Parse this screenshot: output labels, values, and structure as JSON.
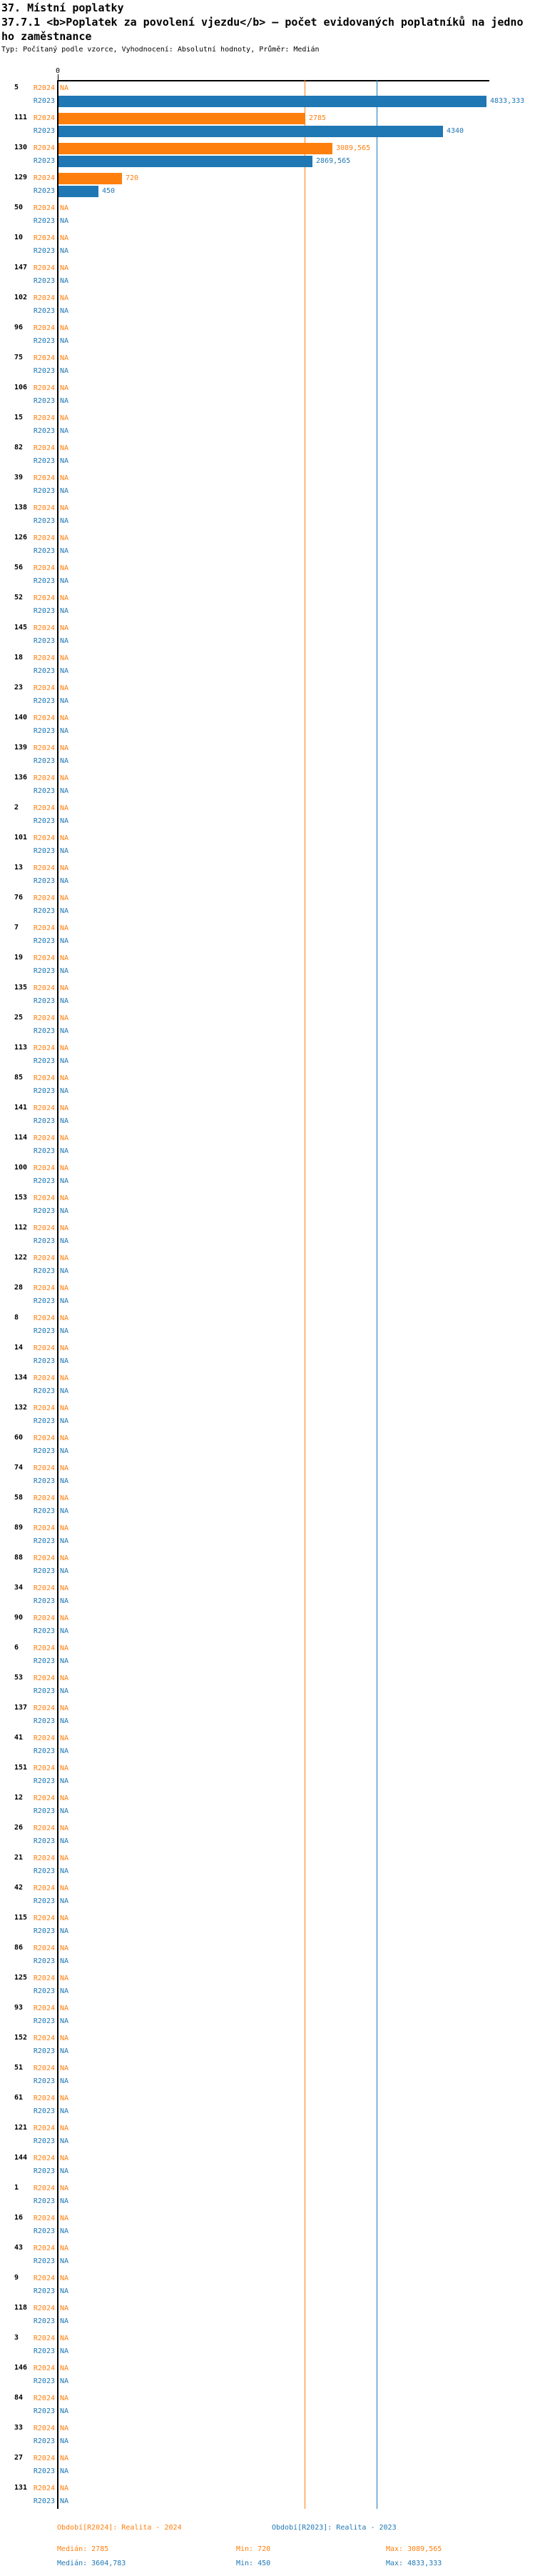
{
  "header": {
    "title": "37. Místní poplatky",
    "subtitle_line1": "37.7.1 <b>Poplatek za povolení vjezdu</b> — počet evidovaných poplatníků na jedno",
    "subtitle_line2": "ho zaměstnance",
    "meta": "Typ: Počítaný podle vzorce, Vyhodnocení: Absolutní hodnoty, Průměr: Medián"
  },
  "chart_data": {
    "type": "bar",
    "orientation": "horizontal",
    "title": "37.7.1 Poplatek za povolení vjezdu — počet evidovaných poplatníků na jednoho zaměstnance",
    "axis": {
      "tick0": "0",
      "xmin": 0,
      "xmax": 4833.333,
      "grid": "median-lines-only"
    },
    "na_label": "NA",
    "series_names": [
      "R2024",
      "R2023"
    ],
    "colors": {
      "r2024": "#ff7f0e",
      "r2023": "#1f77b4",
      "axis": "#000000"
    },
    "median_lines": {
      "r2024": 2785,
      "r2023": 3604.783
    },
    "rows": [
      {
        "id": "5",
        "r2024": null,
        "r2024_label": null,
        "r2023": 4833.333,
        "r2023_label": "4833,333"
      },
      {
        "id": "111",
        "r2024": 2785,
        "r2024_label": "2785",
        "r2023": 4340,
        "r2023_label": "4340"
      },
      {
        "id": "130",
        "r2024": 3089.565,
        "r2024_label": "3089,565",
        "r2023": 2869.565,
        "r2023_label": "2869,565"
      },
      {
        "id": "129",
        "r2024": 720,
        "r2024_label": "720",
        "r2023": 450,
        "r2023_label": "450"
      },
      {
        "id": "50",
        "r2024": null,
        "r2024_label": null,
        "r2023": null,
        "r2023_label": null
      },
      {
        "id": "10",
        "r2024": null,
        "r2024_label": null,
        "r2023": null,
        "r2023_label": null
      },
      {
        "id": "147",
        "r2024": null,
        "r2024_label": null,
        "r2023": null,
        "r2023_label": null
      },
      {
        "id": "102",
        "r2024": null,
        "r2024_label": null,
        "r2023": null,
        "r2023_label": null
      },
      {
        "id": "96",
        "r2024": null,
        "r2024_label": null,
        "r2023": null,
        "r2023_label": null
      },
      {
        "id": "75",
        "r2024": null,
        "r2024_label": null,
        "r2023": null,
        "r2023_label": null
      },
      {
        "id": "106",
        "r2024": null,
        "r2024_label": null,
        "r2023": null,
        "r2023_label": null
      },
      {
        "id": "15",
        "r2024": null,
        "r2024_label": null,
        "r2023": null,
        "r2023_label": null
      },
      {
        "id": "82",
        "r2024": null,
        "r2024_label": null,
        "r2023": null,
        "r2023_label": null
      },
      {
        "id": "39",
        "r2024": null,
        "r2024_label": null,
        "r2023": null,
        "r2023_label": null
      },
      {
        "id": "138",
        "r2024": null,
        "r2024_label": null,
        "r2023": null,
        "r2023_label": null
      },
      {
        "id": "126",
        "r2024": null,
        "r2024_label": null,
        "r2023": null,
        "r2023_label": null
      },
      {
        "id": "56",
        "r2024": null,
        "r2024_label": null,
        "r2023": null,
        "r2023_label": null
      },
      {
        "id": "52",
        "r2024": null,
        "r2024_label": null,
        "r2023": null,
        "r2023_label": null
      },
      {
        "id": "145",
        "r2024": null,
        "r2024_label": null,
        "r2023": null,
        "r2023_label": null
      },
      {
        "id": "18",
        "r2024": null,
        "r2024_label": null,
        "r2023": null,
        "r2023_label": null
      },
      {
        "id": "23",
        "r2024": null,
        "r2024_label": null,
        "r2023": null,
        "r2023_label": null
      },
      {
        "id": "140",
        "r2024": null,
        "r2024_label": null,
        "r2023": null,
        "r2023_label": null
      },
      {
        "id": "139",
        "r2024": null,
        "r2024_label": null,
        "r2023": null,
        "r2023_label": null
      },
      {
        "id": "136",
        "r2024": null,
        "r2024_label": null,
        "r2023": null,
        "r2023_label": null
      },
      {
        "id": "2",
        "r2024": null,
        "r2024_label": null,
        "r2023": null,
        "r2023_label": null
      },
      {
        "id": "101",
        "r2024": null,
        "r2024_label": null,
        "r2023": null,
        "r2023_label": null
      },
      {
        "id": "13",
        "r2024": null,
        "r2024_label": null,
        "r2023": null,
        "r2023_label": null
      },
      {
        "id": "76",
        "r2024": null,
        "r2024_label": null,
        "r2023": null,
        "r2023_label": null
      },
      {
        "id": "7",
        "r2024": null,
        "r2024_label": null,
        "r2023": null,
        "r2023_label": null
      },
      {
        "id": "19",
        "r2024": null,
        "r2024_label": null,
        "r2023": null,
        "r2023_label": null
      },
      {
        "id": "135",
        "r2024": null,
        "r2024_label": null,
        "r2023": null,
        "r2023_label": null
      },
      {
        "id": "25",
        "r2024": null,
        "r2024_label": null,
        "r2023": null,
        "r2023_label": null
      },
      {
        "id": "113",
        "r2024": null,
        "r2024_label": null,
        "r2023": null,
        "r2023_label": null
      },
      {
        "id": "85",
        "r2024": null,
        "r2024_label": null,
        "r2023": null,
        "r2023_label": null
      },
      {
        "id": "141",
        "r2024": null,
        "r2024_label": null,
        "r2023": null,
        "r2023_label": null
      },
      {
        "id": "114",
        "r2024": null,
        "r2024_label": null,
        "r2023": null,
        "r2023_label": null
      },
      {
        "id": "100",
        "r2024": null,
        "r2024_label": null,
        "r2023": null,
        "r2023_label": null
      },
      {
        "id": "153",
        "r2024": null,
        "r2024_label": null,
        "r2023": null,
        "r2023_label": null
      },
      {
        "id": "112",
        "r2024": null,
        "r2024_label": null,
        "r2023": null,
        "r2023_label": null
      },
      {
        "id": "122",
        "r2024": null,
        "r2024_label": null,
        "r2023": null,
        "r2023_label": null
      },
      {
        "id": "28",
        "r2024": null,
        "r2024_label": null,
        "r2023": null,
        "r2023_label": null
      },
      {
        "id": "8",
        "r2024": null,
        "r2024_label": null,
        "r2023": null,
        "r2023_label": null
      },
      {
        "id": "14",
        "r2024": null,
        "r2024_label": null,
        "r2023": null,
        "r2023_label": null
      },
      {
        "id": "134",
        "r2024": null,
        "r2024_label": null,
        "r2023": null,
        "r2023_label": null
      },
      {
        "id": "132",
        "r2024": null,
        "r2024_label": null,
        "r2023": null,
        "r2023_label": null
      },
      {
        "id": "60",
        "r2024": null,
        "r2024_label": null,
        "r2023": null,
        "r2023_label": null
      },
      {
        "id": "74",
        "r2024": null,
        "r2024_label": null,
        "r2023": null,
        "r2023_label": null
      },
      {
        "id": "58",
        "r2024": null,
        "r2024_label": null,
        "r2023": null,
        "r2023_label": null
      },
      {
        "id": "89",
        "r2024": null,
        "r2024_label": null,
        "r2023": null,
        "r2023_label": null
      },
      {
        "id": "88",
        "r2024": null,
        "r2024_label": null,
        "r2023": null,
        "r2023_label": null
      },
      {
        "id": "34",
        "r2024": null,
        "r2024_label": null,
        "r2023": null,
        "r2023_label": null
      },
      {
        "id": "90",
        "r2024": null,
        "r2024_label": null,
        "r2023": null,
        "r2023_label": null
      },
      {
        "id": "6",
        "r2024": null,
        "r2024_label": null,
        "r2023": null,
        "r2023_label": null
      },
      {
        "id": "53",
        "r2024": null,
        "r2024_label": null,
        "r2023": null,
        "r2023_label": null
      },
      {
        "id": "137",
        "r2024": null,
        "r2024_label": null,
        "r2023": null,
        "r2023_label": null
      },
      {
        "id": "41",
        "r2024": null,
        "r2024_label": null,
        "r2023": null,
        "r2023_label": null
      },
      {
        "id": "151",
        "r2024": null,
        "r2024_label": null,
        "r2023": null,
        "r2023_label": null
      },
      {
        "id": "12",
        "r2024": null,
        "r2024_label": null,
        "r2023": null,
        "r2023_label": null
      },
      {
        "id": "26",
        "r2024": null,
        "r2024_label": null,
        "r2023": null,
        "r2023_label": null
      },
      {
        "id": "21",
        "r2024": null,
        "r2024_label": null,
        "r2023": null,
        "r2023_label": null
      },
      {
        "id": "42",
        "r2024": null,
        "r2024_label": null,
        "r2023": null,
        "r2023_label": null
      },
      {
        "id": "115",
        "r2024": null,
        "r2024_label": null,
        "r2023": null,
        "r2023_label": null
      },
      {
        "id": "86",
        "r2024": null,
        "r2024_label": null,
        "r2023": null,
        "r2023_label": null
      },
      {
        "id": "125",
        "r2024": null,
        "r2024_label": null,
        "r2023": null,
        "r2023_label": null
      },
      {
        "id": "93",
        "r2024": null,
        "r2024_label": null,
        "r2023": null,
        "r2023_label": null
      },
      {
        "id": "152",
        "r2024": null,
        "r2024_label": null,
        "r2023": null,
        "r2023_label": null
      },
      {
        "id": "51",
        "r2024": null,
        "r2024_label": null,
        "r2023": null,
        "r2023_label": null
      },
      {
        "id": "61",
        "r2024": null,
        "r2024_label": null,
        "r2023": null,
        "r2023_label": null
      },
      {
        "id": "121",
        "r2024": null,
        "r2024_label": null,
        "r2023": null,
        "r2023_label": null
      },
      {
        "id": "144",
        "r2024": null,
        "r2024_label": null,
        "r2023": null,
        "r2023_label": null
      },
      {
        "id": "1",
        "r2024": null,
        "r2024_label": null,
        "r2023": null,
        "r2023_label": null
      },
      {
        "id": "16",
        "r2024": null,
        "r2024_label": null,
        "r2023": null,
        "r2023_label": null
      },
      {
        "id": "43",
        "r2024": null,
        "r2024_label": null,
        "r2023": null,
        "r2023_label": null
      },
      {
        "id": "9",
        "r2024": null,
        "r2024_label": null,
        "r2023": null,
        "r2023_label": null
      },
      {
        "id": "118",
        "r2024": null,
        "r2024_label": null,
        "r2023": null,
        "r2023_label": null
      },
      {
        "id": "3",
        "r2024": null,
        "r2024_label": null,
        "r2023": null,
        "r2023_label": null
      },
      {
        "id": "146",
        "r2024": null,
        "r2024_label": null,
        "r2023": null,
        "r2023_label": null
      },
      {
        "id": "84",
        "r2024": null,
        "r2024_label": null,
        "r2023": null,
        "r2023_label": null
      },
      {
        "id": "33",
        "r2024": null,
        "r2024_label": null,
        "r2023": null,
        "r2023_label": null
      },
      {
        "id": "27",
        "r2024": null,
        "r2024_label": null,
        "r2023": null,
        "r2023_label": null
      },
      {
        "id": "131",
        "r2024": null,
        "r2024_label": null,
        "r2023": null,
        "r2023_label": null
      }
    ]
  },
  "legend": {
    "period_r2024": "Období[R2024]: Realita - 2024",
    "period_r2023": "Období[R2023]: Realita - 2023",
    "r2024_median": "Medián: 2785",
    "r2024_min": "Min: 720",
    "r2024_max": "Max: 3089,565",
    "r2023_median": "Medián: 3604,783",
    "r2023_min": "Min: 450",
    "r2023_max": "Max: 4833,333"
  }
}
